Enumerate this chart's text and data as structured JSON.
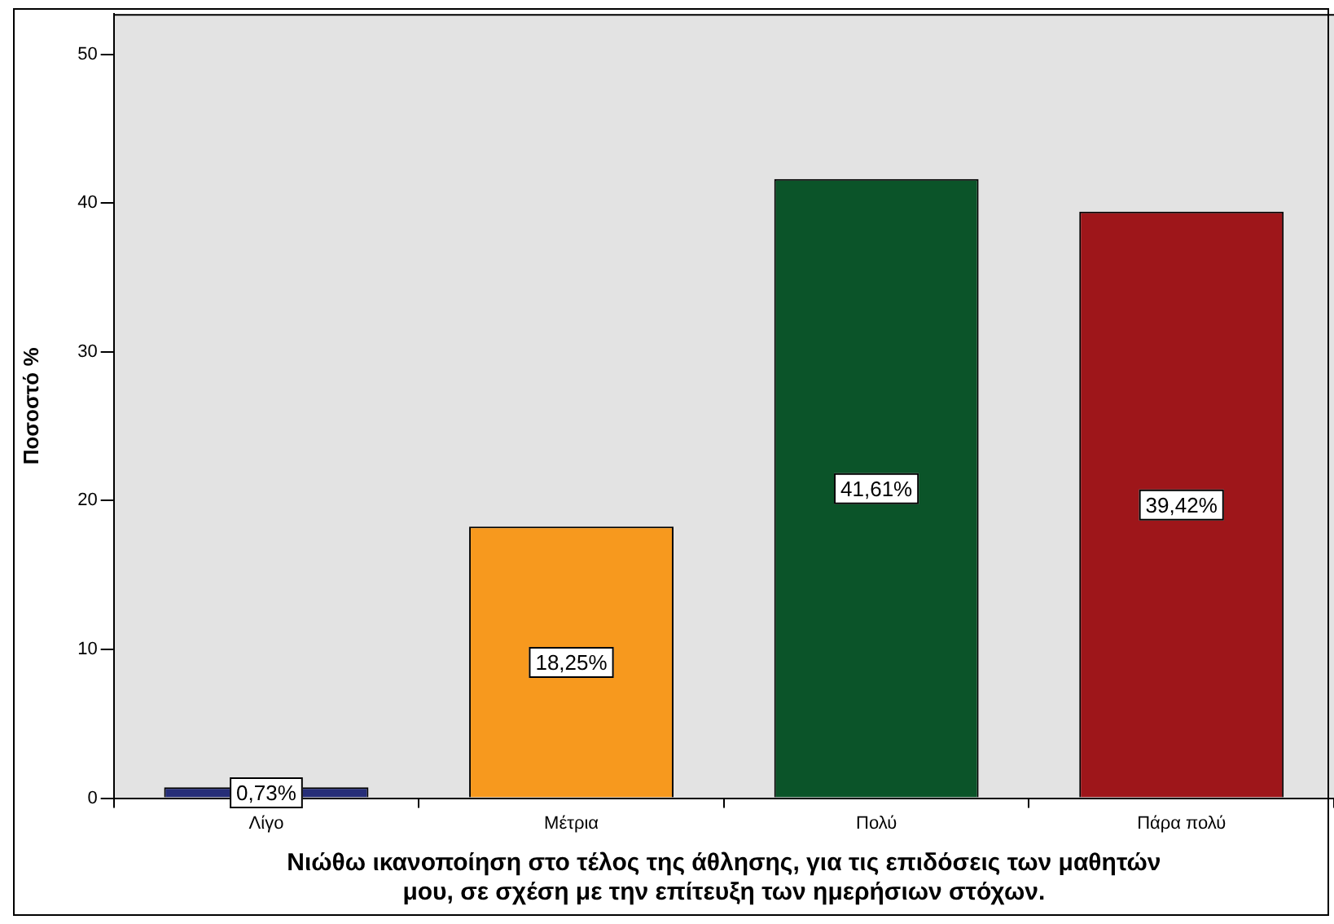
{
  "chart_data": {
    "type": "bar",
    "xlabel": [
      "Νιώθω ικανοποίηση στο τέλος της άθλησης, για τις επιδόσεις των μαθητών",
      "μου, σε σχέση με την επίτευξη των ημερήσιων στόχων."
    ],
    "ylabel": "Ποσοστό %",
    "categories": [
      "Λίγο",
      "Μέτρια",
      "Πολύ",
      "Πάρα πολύ"
    ],
    "values": [
      0.73,
      18.25,
      41.61,
      39.42
    ],
    "colors": [
      "#262e78",
      "#f7991e",
      "#0b5429",
      "#9e161a"
    ],
    "value_labels": [
      "0,73%",
      "18,25%",
      "41,61%",
      "39,42%"
    ],
    "ylim": [
      0,
      52.7
    ],
    "yticks": [
      0,
      10,
      20,
      30,
      40,
      50
    ],
    "grid": false,
    "legend": false
  }
}
